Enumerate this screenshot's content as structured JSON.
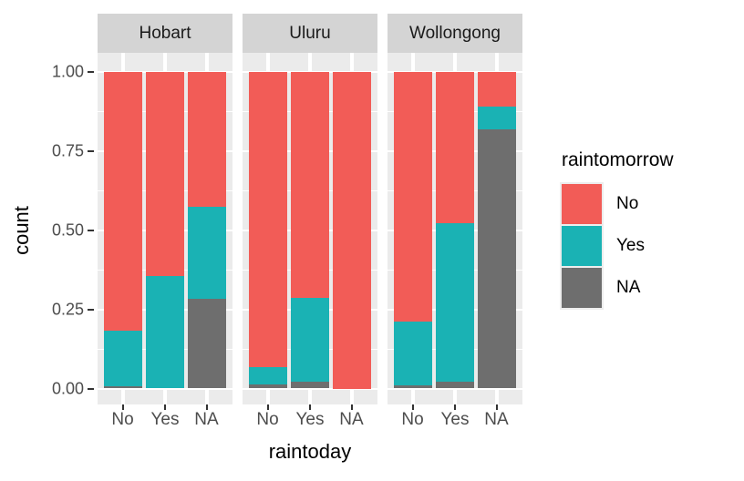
{
  "chart_data": {
    "type": "bar",
    "stacked": true,
    "normalized": true,
    "title": "",
    "xlabel": "raintoday",
    "ylabel": "count",
    "ylim": [
      0,
      1
    ],
    "y_ticks": [
      {
        "label": "0.00",
        "value": 0.0
      },
      {
        "label": "0.25",
        "value": 0.25
      },
      {
        "label": "0.50",
        "value": 0.5
      },
      {
        "label": "0.75",
        "value": 0.75
      },
      {
        "label": "1.00",
        "value": 1.0
      }
    ],
    "y_minor_ticks": [
      0.125,
      0.375,
      0.625,
      0.875
    ],
    "categories": [
      "No",
      "Yes",
      "NA"
    ],
    "stack_order_bottom_to_top": [
      "NA",
      "Yes",
      "No"
    ],
    "legend": {
      "title": "raintomorrow",
      "position": "right",
      "entries": [
        {
          "label": "No",
          "color": "#F25C57"
        },
        {
          "label": "Yes",
          "color": "#1AB2B4"
        },
        {
          "label": "NA",
          "color": "#6E6E6E"
        }
      ]
    },
    "facets": [
      {
        "label": "Hobart",
        "stacks": [
          {
            "x": "No",
            "segments": {
              "NA": 0.008,
              "Yes": 0.174,
              "No": 0.818
            }
          },
          {
            "x": "Yes",
            "segments": {
              "NA": 0.0,
              "Yes": 0.356,
              "No": 0.644
            }
          },
          {
            "x": "NA",
            "segments": {
              "NA": 0.284,
              "Yes": 0.29,
              "No": 0.426
            }
          }
        ]
      },
      {
        "label": "Uluru",
        "stacks": [
          {
            "x": "No",
            "segments": {
              "NA": 0.012,
              "Yes": 0.056,
              "No": 0.932
            }
          },
          {
            "x": "Yes",
            "segments": {
              "NA": 0.021,
              "Yes": 0.264,
              "No": 0.715
            }
          },
          {
            "x": "NA",
            "segments": {
              "NA": 0.0,
              "Yes": 0.0,
              "No": 1.0
            }
          }
        ]
      },
      {
        "label": "Wollongong",
        "stacks": [
          {
            "x": "No",
            "segments": {
              "NA": 0.009,
              "Yes": 0.203,
              "No": 0.788
            }
          },
          {
            "x": "Yes",
            "segments": {
              "NA": 0.021,
              "Yes": 0.501,
              "No": 0.478
            }
          },
          {
            "x": "NA",
            "segments": {
              "NA": 0.818,
              "Yes": 0.072,
              "No": 0.11
            }
          }
        ]
      }
    ],
    "theme_colors": {
      "panel_background": "#EBEBEB",
      "strip_background": "#D4D4D4",
      "gridline": "#FFFFFF",
      "axis_text": "#4D4D4D",
      "axis_title": "#000000",
      "tick_mark": "#333333",
      "figure_background": "#FFFFFF"
    }
  }
}
